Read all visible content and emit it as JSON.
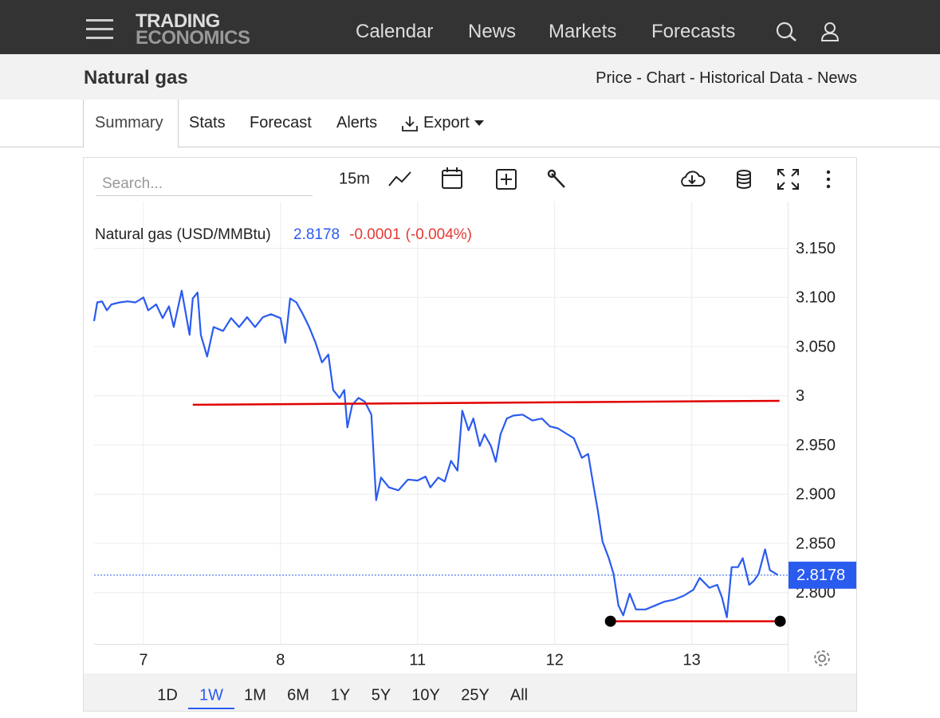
{
  "nav": {
    "logo": [
      "TRADING",
      "ECONOMICS"
    ],
    "links": [
      "Calendar",
      "News",
      "Markets",
      "Forecasts"
    ]
  },
  "header": {
    "title": "Natural gas",
    "links": "Price - Chart - Historical Data - News"
  },
  "tabs": [
    "Summary",
    "Stats",
    "Forecast",
    "Alerts",
    "Export"
  ],
  "toolbar": {
    "search": "Search...",
    "interval": "15m"
  },
  "ranges": {
    "items": [
      "1D",
      "1W",
      "1M",
      "6M",
      "1Y",
      "5Y",
      "10Y",
      "25Y",
      "All"
    ],
    "active": "1W"
  },
  "chart_data": {
    "type": "line",
    "title": "Natural gas (USD/MMBtu)",
    "last_value": 2.8178,
    "change": -0.0001,
    "change_pct": "(-0.004%)",
    "xlim": [
      -0.36,
      4.7
    ],
    "xticks": [
      {
        "value": 0,
        "label": "7"
      },
      {
        "value": 1,
        "label": "8"
      },
      {
        "value": 2,
        "label": "11"
      },
      {
        "value": 3,
        "label": "12"
      },
      {
        "value": 4,
        "label": "13"
      }
    ],
    "ylim": [
      2.75,
      3.195
    ],
    "yticks": [
      {
        "value": 2.8,
        "label": "2.800"
      },
      {
        "value": 2.85,
        "label": "2.850"
      },
      {
        "value": 2.9,
        "label": "2.900"
      },
      {
        "value": 2.95,
        "label": "2.950"
      },
      3,
      {
        "value": 3.05,
        "label": "3.050"
      },
      {
        "value": 3.1,
        "label": "3.100"
      },
      {
        "value": 3.15,
        "label": "3.150"
      }
    ],
    "grid": true,
    "series": [
      {
        "name": "Natural gas",
        "color": "#2a5bef",
        "x": [
          -0.36,
          -0.337,
          -0.302,
          -0.267,
          -0.233,
          -0.174,
          -0.116,
          -0.058,
          0,
          0.035,
          0.093,
          0.14,
          0.186,
          0.221,
          0.279,
          0.337,
          0.36,
          0.395,
          0.419,
          0.465,
          0.512,
          0.581,
          0.64,
          0.698,
          0.756,
          0.814,
          0.872,
          0.93,
          1.0,
          1.035,
          1.07,
          1.116,
          1.163,
          1.209,
          1.256,
          1.302,
          1.349,
          1.384,
          1.43,
          1.465,
          1.488,
          1.523,
          1.57,
          1.616,
          1.663,
          1.698,
          1.733,
          1.791,
          1.86,
          1.93,
          2.0,
          2.058,
          2.093,
          2.151,
          2.198,
          2.244,
          2.291,
          2.326,
          2.372,
          2.407,
          2.453,
          2.488,
          2.535,
          2.57,
          2.605,
          2.651,
          2.698,
          2.767,
          2.837,
          2.907,
          2.965,
          3.023,
          3.093,
          3.14,
          3.198,
          3.244,
          3.279,
          3.314,
          3.349,
          3.395,
          3.43,
          3.465,
          3.5,
          3.547,
          3.593,
          3.663,
          3.733,
          3.802,
          3.872,
          3.942,
          4.012,
          4.058,
          4.128,
          4.186,
          4.221,
          4.256,
          4.291,
          4.337,
          4.372,
          4.419,
          4.453,
          4.488,
          4.535,
          4.57,
          4.616,
          4.628
        ],
        "values": [
          3.076,
          3.095,
          3.096,
          3.087,
          3.093,
          3.095,
          3.096,
          3.095,
          3.1,
          3.087,
          3.093,
          3.079,
          3.091,
          3.07,
          3.107,
          3.062,
          3.099,
          3.105,
          3.062,
          3.04,
          3.07,
          3.066,
          3.079,
          3.07,
          3.08,
          3.07,
          3.08,
          3.083,
          3.079,
          3.054,
          3.099,
          3.095,
          3.083,
          3.07,
          3.054,
          3.034,
          3.042,
          3.006,
          2.998,
          3.006,
          2.968,
          2.991,
          2.998,
          2.994,
          2.981,
          2.894,
          2.917,
          2.907,
          2.904,
          2.915,
          2.914,
          2.918,
          2.907,
          2.917,
          2.913,
          2.934,
          2.924,
          2.985,
          2.965,
          2.977,
          2.949,
          2.961,
          2.949,
          2.933,
          2.961,
          2.977,
          2.98,
          2.981,
          2.975,
          2.977,
          2.969,
          2.967,
          2.961,
          2.957,
          2.937,
          2.941,
          2.912,
          2.884,
          2.852,
          2.835,
          2.819,
          2.787,
          2.777,
          2.799,
          2.783,
          2.783,
          2.787,
          2.791,
          2.793,
          2.797,
          2.803,
          2.815,
          2.805,
          2.808,
          2.795,
          2.775,
          2.826,
          2.826,
          2.835,
          2.808,
          2.812,
          2.819,
          2.844,
          2.823,
          2.819,
          2.8178
        ]
      }
    ],
    "trendlines": [
      {
        "color": "#e00000",
        "x": [
          0.36,
          4.64
        ],
        "values": [
          2.991,
          2.995
        ]
      },
      {
        "color": "#e00000",
        "x": [
          3.407,
          4.645
        ],
        "values": [
          2.771,
          2.771
        ]
      }
    ]
  }
}
